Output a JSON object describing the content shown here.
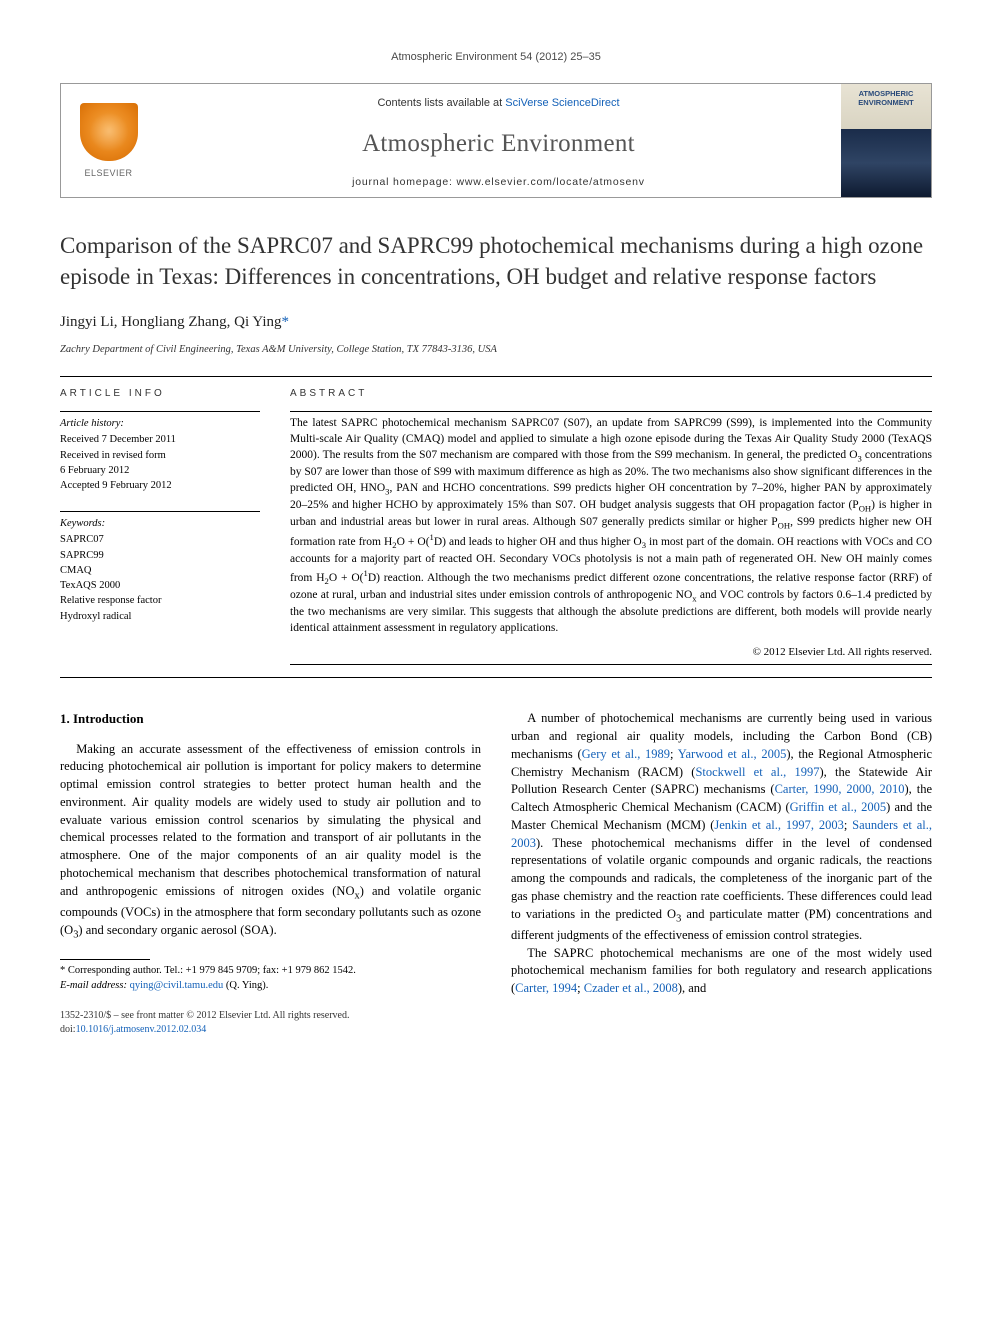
{
  "running_head": "Atmospheric Environment 54 (2012) 25–35",
  "banner": {
    "contents_prefix": "Contents lists available at ",
    "contents_link": "SciVerse ScienceDirect",
    "journal": "Atmospheric Environment",
    "homepage_prefix": "journal homepage: ",
    "homepage_url": "www.elsevier.com/locate/atmosenv",
    "publisher": "ELSEVIER",
    "cover_title": "ATMOSPHERIC ENVIRONMENT"
  },
  "title": "Comparison of the SAPRC07 and SAPRC99 photochemical mechanisms during a high ozone episode in Texas: Differences in concentrations, OH budget and relative response factors",
  "authors_html": "Jingyi Li, Hongliang Zhang, Qi Ying<a href='#'>*</a>",
  "affiliation": "Zachry Department of Civil Engineering, Texas A&M University, College Station, TX 77843-3136, USA",
  "article_info_label": "ARTICLE INFO",
  "abstract_label": "ABSTRACT",
  "history": {
    "head": "Article history:",
    "received": "Received 7 December 2011",
    "revised1": "Received in revised form",
    "revised2": "6 February 2012",
    "accepted": "Accepted 9 February 2012"
  },
  "keywords": {
    "head": "Keywords:",
    "items": [
      "SAPRC07",
      "SAPRC99",
      "CMAQ",
      "TexAQS 2000",
      "Relative response factor",
      "Hydroxyl radical"
    ]
  },
  "abstract_html": "The latest SAPRC photochemical mechanism SAPRC07 (S07), an update from SAPRC99 (S99), is implemented into the Community Multi-scale Air Quality (CMAQ) model and applied to simulate a high ozone episode during the Texas Air Quality Study 2000 (TexAQS 2000). The results from the S07 mechanism are compared with those from the S99 mechanism. In general, the predicted O<sub>3</sub> concentrations by S07 are lower than those of S99 with maximum difference as high as 20%. The two mechanisms also show significant differences in the predicted OH, HNO<sub>3</sub>, PAN and HCHO concentrations. S99 predicts higher OH concentration by 7–20%, higher PAN by approximately 20–25% and higher HCHO by approximately 15% than S07. OH budget analysis suggests that OH propagation factor (P<sub>OH</sub>) is higher in urban and industrial areas but lower in rural areas. Although S07 generally predicts similar or higher P<sub>OH</sub>, S99 predicts higher new OH formation rate from H<sub>2</sub>O + O(<sup>1</sup>D) and leads to higher OH and thus higher O<sub>3</sub> in most part of the domain. OH reactions with VOCs and CO accounts for a majority part of reacted OH. Secondary VOCs photolysis is not a main path of regenerated OH. New OH mainly comes from H<sub>2</sub>O + O(<sup>1</sup>D) reaction. Although the two mechanisms predict different ozone concentrations, the relative response factor (RRF) of ozone at rural, urban and industrial sites under emission controls of anthropogenic NO<sub>x</sub> and VOC controls by factors 0.6–1.4 predicted by the two mechanisms are very similar. This suggests that although the absolute predictions are different, both models will provide nearly identical attainment assessment in regulatory applications.",
  "copyright": "© 2012 Elsevier Ltd. All rights reserved.",
  "section1_heading": "1. Introduction",
  "para1_html": "Making an accurate assessment of the effectiveness of emission controls in reducing photochemical air pollution is important for policy makers to determine optimal emission control strategies to better protect human health and the environment. Air quality models are widely used to study air pollution and to evaluate various emission control scenarios by simulating the physical and chemical processes related to the formation and transport of air pollutants in the atmosphere. One of the major components of an air quality model is the photochemical mechanism that describes photochemical transformation of natural and anthropogenic emissions of nitrogen oxides (NO<sub>x</sub>) and volatile organic compounds (VOCs) in the atmosphere that form secondary pollutants such as ozone (O<sub>3</sub>) and secondary organic aerosol (SOA).",
  "para2_html": "A number of photochemical mechanisms are currently being used in various urban and regional air quality models, including the Carbon Bond (CB) mechanisms (<a href='#'>Gery et al., 1989</a>; <a href='#'>Yarwood et al., 2005</a>), the Regional Atmospheric Chemistry Mechanism (RACM) (<a href='#'>Stockwell et al., 1997</a>), the Statewide Air Pollution Research Center (SAPRC) mechanisms (<a href='#'>Carter, 1990, 2000, 2010</a>), the Caltech Atmospheric Chemical Mechanism (CACM) (<a href='#'>Griffin et al., 2005</a>) and the Master Chemical Mechanism (MCM) (<a href='#'>Jenkin et al., 1997, 2003</a>; <a href='#'>Saunders et al., 2003</a>). These photochemical mechanisms differ in the level of condensed representations of volatile organic compounds and organic radicals, the reactions among the compounds and radicals, the completeness of the inorganic part of the gas phase chemistry and the reaction rate coefficients. These differences could lead to variations in the predicted O<sub>3</sub> and particulate matter (PM) concentrations and different judgments of the effectiveness of emission control strategies.",
  "para3_html": "The SAPRC photochemical mechanisms are one of the most widely used photochemical mechanism families for both regulatory and research applications (<a href='#'>Carter, 1994</a>; <a href='#'>Czader et al., 2008</a>), and",
  "footnote": {
    "corr": "* Corresponding author. Tel.: +1 979 845 9709; fax: +1 979 862 1542.",
    "email_label": "E-mail address: ",
    "email": "qying@civil.tamu.edu",
    "email_suffix": " (Q. Ying)."
  },
  "footer": {
    "line1": "1352-2310/$ – see front matter © 2012 Elsevier Ltd. All rights reserved.",
    "doi_prefix": "doi:",
    "doi": "10.1016/j.atmosenv.2012.02.034"
  },
  "colors": {
    "link": "#1461b8",
    "text": "#000000",
    "muted": "#4a4a4a",
    "elsevier_orange": "#e8851a"
  }
}
